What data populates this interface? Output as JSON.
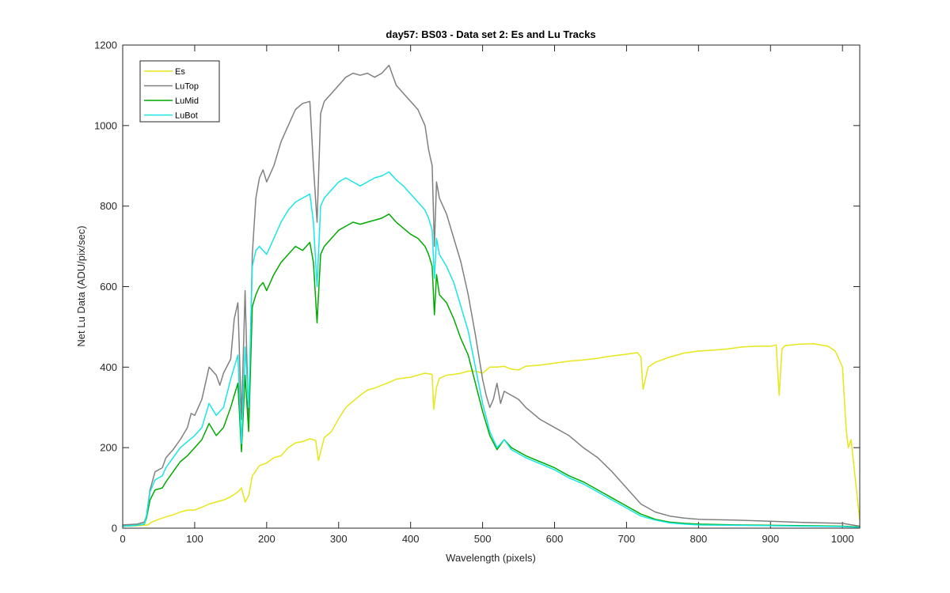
{
  "chart_data": {
    "type": "line",
    "title": "day57: BS03 - Data set 2: Es and Lu Tracks",
    "xlabel": "Wavelength (pixels)",
    "ylabel": "Net Lu Data (ADU/pix/sec)",
    "xlim": [
      0,
      1024
    ],
    "ylim": [
      0,
      1200
    ],
    "xticks": [
      0,
      100,
      200,
      300,
      400,
      500,
      600,
      700,
      800,
      900,
      1000
    ],
    "yticks": [
      0,
      200,
      400,
      600,
      800,
      1000,
      1200
    ],
    "grid": false,
    "legend_position": "top-left",
    "series": [
      {
        "name": "Es",
        "color": "#e6e619",
        "x": [
          0,
          20,
          35,
          40,
          50,
          60,
          70,
          80,
          90,
          100,
          110,
          120,
          130,
          140,
          150,
          160,
          165,
          170,
          175,
          180,
          190,
          200,
          210,
          220,
          230,
          240,
          250,
          260,
          268,
          272,
          280,
          290,
          300,
          310,
          320,
          330,
          340,
          350,
          360,
          370,
          380,
          390,
          400,
          410,
          420,
          430,
          432,
          436,
          440,
          450,
          460,
          470,
          480,
          490,
          500,
          510,
          520,
          530,
          540,
          550,
          560,
          580,
          600,
          620,
          640,
          660,
          680,
          700,
          715,
          720,
          723,
          730,
          740,
          760,
          780,
          800,
          820,
          840,
          860,
          880,
          900,
          908,
          912,
          916,
          920,
          940,
          960,
          980,
          990,
          1000,
          1005,
          1008,
          1012,
          1018,
          1024
        ],
        "y": [
          5,
          6,
          8,
          15,
          22,
          28,
          33,
          40,
          45,
          45,
          52,
          60,
          65,
          70,
          78,
          90,
          100,
          65,
          80,
          130,
          155,
          162,
          175,
          180,
          200,
          212,
          215,
          222,
          218,
          168,
          225,
          240,
          272,
          300,
          315,
          330,
          343,
          348,
          355,
          362,
          370,
          373,
          375,
          380,
          385,
          382,
          295,
          350,
          372,
          380,
          382,
          385,
          390,
          390,
          385,
          400,
          400,
          402,
          395,
          393,
          402,
          405,
          410,
          415,
          418,
          422,
          428,
          432,
          436,
          425,
          345,
          400,
          412,
          425,
          435,
          440,
          442,
          445,
          450,
          452,
          452,
          455,
          330,
          445,
          453,
          457,
          458,
          452,
          440,
          400,
          250,
          200,
          220,
          120,
          20
        ]
      },
      {
        "name": "LuTop",
        "color": "#808080",
        "x": [
          0,
          20,
          30,
          33,
          38,
          45,
          55,
          60,
          70,
          80,
          90,
          95,
          100,
          110,
          120,
          130,
          135,
          140,
          150,
          155,
          160,
          165,
          170,
          175,
          180,
          185,
          190,
          195,
          200,
          210,
          220,
          230,
          240,
          250,
          260,
          265,
          270,
          275,
          280,
          290,
          300,
          310,
          320,
          330,
          340,
          350,
          360,
          370,
          380,
          390,
          400,
          410,
          420,
          425,
          430,
          433,
          436,
          440,
          450,
          460,
          470,
          480,
          490,
          500,
          505,
          510,
          515,
          520,
          525,
          530,
          540,
          550,
          560,
          580,
          600,
          620,
          640,
          660,
          680,
          700,
          720,
          740,
          760,
          780,
          800,
          850,
          900,
          950,
          1000,
          1024
        ],
        "y": [
          8,
          10,
          15,
          30,
          95,
          140,
          150,
          175,
          195,
          220,
          250,
          285,
          280,
          320,
          400,
          380,
          355,
          385,
          420,
          520,
          560,
          270,
          590,
          250,
          680,
          820,
          870,
          890,
          860,
          900,
          960,
          1000,
          1040,
          1055,
          1060,
          900,
          760,
          1030,
          1060,
          1080,
          1100,
          1120,
          1130,
          1125,
          1130,
          1120,
          1130,
          1150,
          1100,
          1080,
          1060,
          1040,
          1000,
          940,
          900,
          700,
          860,
          820,
          780,
          720,
          660,
          580,
          480,
          370,
          330,
          300,
          320,
          360,
          310,
          340,
          330,
          320,
          300,
          270,
          250,
          230,
          200,
          175,
          140,
          100,
          60,
          40,
          30,
          25,
          22,
          20,
          17,
          14,
          12,
          5
        ]
      },
      {
        "name": "LuMid",
        "color": "#00aa00",
        "x": [
          0,
          20,
          30,
          33,
          38,
          45,
          55,
          60,
          70,
          80,
          90,
          100,
          110,
          120,
          130,
          140,
          150,
          155,
          160,
          165,
          170,
          175,
          180,
          185,
          190,
          195,
          200,
          210,
          220,
          230,
          240,
          250,
          260,
          265,
          270,
          275,
          280,
          290,
          300,
          310,
          320,
          330,
          340,
          350,
          360,
          370,
          380,
          390,
          400,
          410,
          420,
          425,
          430,
          433,
          436,
          440,
          450,
          460,
          470,
          480,
          490,
          500,
          510,
          520,
          530,
          540,
          560,
          580,
          600,
          620,
          640,
          660,
          680,
          700,
          720,
          740,
          760,
          780,
          800,
          850,
          900,
          950,
          1000,
          1024
        ],
        "y": [
          5,
          7,
          10,
          25,
          70,
          95,
          100,
          115,
          140,
          165,
          180,
          200,
          220,
          260,
          230,
          250,
          300,
          330,
          360,
          190,
          380,
          240,
          550,
          580,
          600,
          610,
          590,
          630,
          660,
          680,
          700,
          690,
          710,
          660,
          510,
          680,
          700,
          720,
          740,
          750,
          760,
          755,
          760,
          765,
          770,
          780,
          760,
          745,
          730,
          720,
          700,
          680,
          650,
          530,
          630,
          580,
          560,
          520,
          470,
          430,
          360,
          290,
          230,
          195,
          220,
          200,
          180,
          165,
          150,
          130,
          115,
          95,
          75,
          55,
          35,
          22,
          15,
          12,
          10,
          8,
          7,
          6,
          5,
          3
        ]
      },
      {
        "name": "LuBot",
        "color": "#19e6e6",
        "x": [
          0,
          20,
          30,
          33,
          38,
          45,
          55,
          60,
          70,
          80,
          90,
          100,
          110,
          120,
          130,
          140,
          150,
          155,
          160,
          165,
          170,
          175,
          180,
          185,
          190,
          195,
          200,
          210,
          220,
          230,
          240,
          250,
          260,
          265,
          270,
          275,
          280,
          290,
          300,
          310,
          320,
          330,
          340,
          350,
          360,
          370,
          380,
          390,
          400,
          410,
          420,
          425,
          430,
          433,
          436,
          440,
          450,
          460,
          470,
          480,
          490,
          500,
          510,
          520,
          530,
          540,
          560,
          580,
          600,
          620,
          640,
          660,
          680,
          700,
          720,
          740,
          760,
          780,
          800,
          850,
          900,
          950,
          1000,
          1024
        ],
        "y": [
          5,
          7,
          10,
          30,
          90,
          120,
          130,
          150,
          175,
          200,
          215,
          230,
          250,
          310,
          280,
          300,
          370,
          400,
          430,
          210,
          450,
          300,
          650,
          690,
          700,
          690,
          680,
          720,
          760,
          790,
          810,
          820,
          830,
          760,
          600,
          800,
          820,
          840,
          860,
          870,
          860,
          850,
          860,
          870,
          875,
          885,
          865,
          850,
          830,
          810,
          790,
          770,
          740,
          620,
          720,
          680,
          650,
          610,
          550,
          490,
          400,
          310,
          240,
          200,
          220,
          195,
          175,
          160,
          145,
          125,
          110,
          90,
          70,
          50,
          30,
          20,
          13,
          10,
          8,
          7,
          6,
          5,
          4,
          2
        ]
      }
    ]
  }
}
